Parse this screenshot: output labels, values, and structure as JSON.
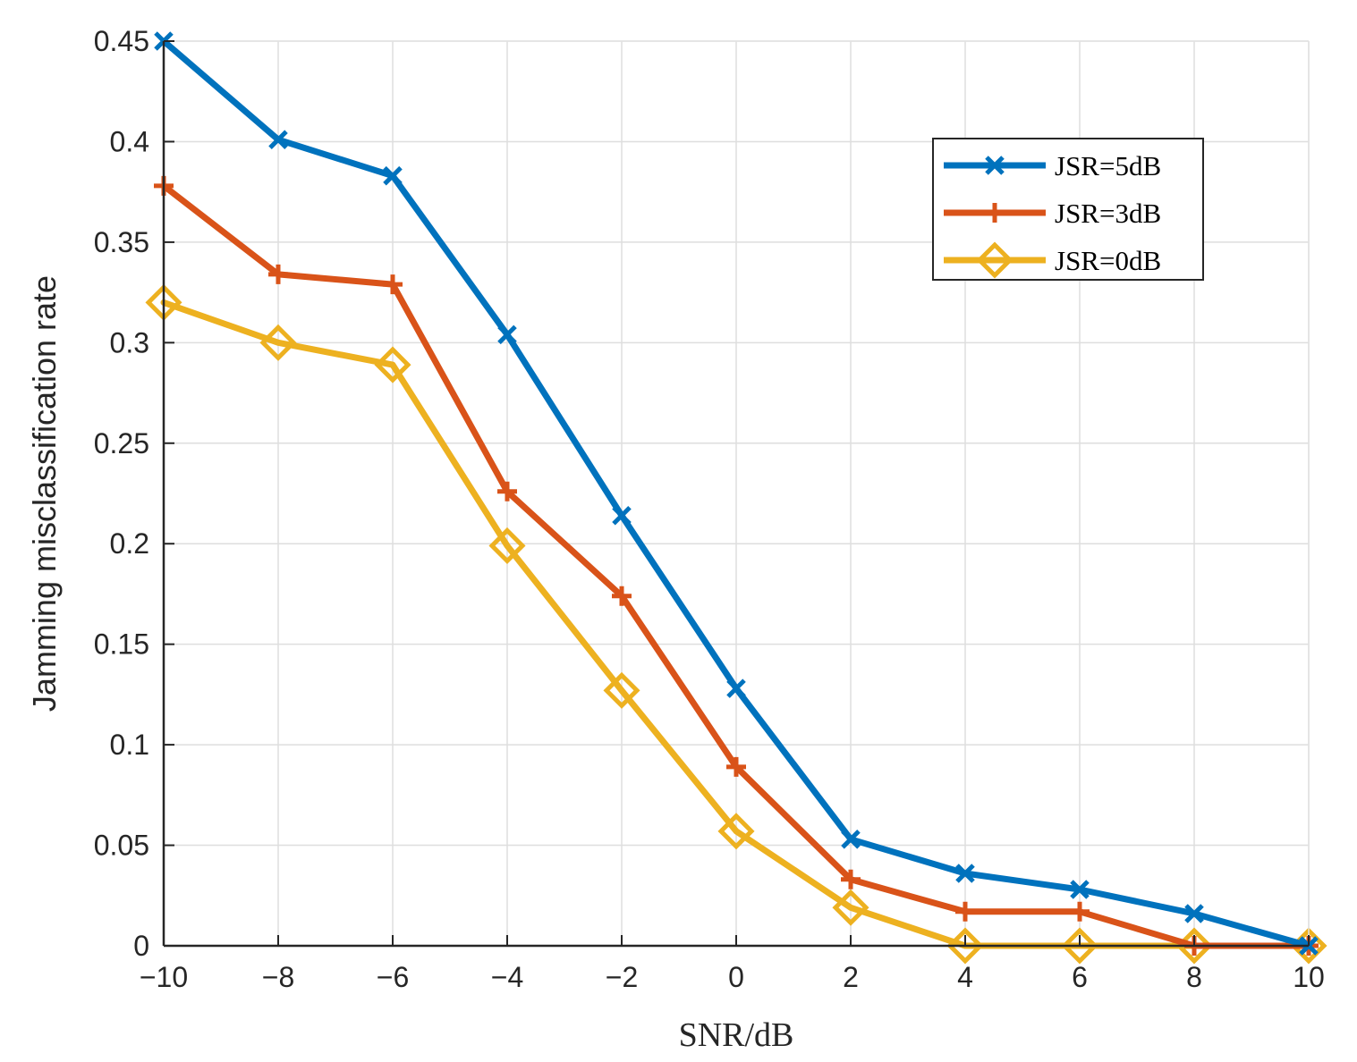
{
  "chart_data": {
    "type": "line",
    "title": "",
    "xlabel": "SNR/dB",
    "ylabel": "Jamming misclassification rate",
    "x": [
      -10,
      -8,
      -6,
      -4,
      -2,
      0,
      2,
      4,
      6,
      8,
      10
    ],
    "xlim": [
      -10,
      10
    ],
    "ylim": [
      0,
      0.45
    ],
    "x_ticks": [
      -10,
      -8,
      -6,
      -4,
      -2,
      0,
      2,
      4,
      6,
      8,
      10
    ],
    "x_tick_labels": [
      "−10",
      "−8",
      "−6",
      "−4",
      "−2",
      "0",
      "2",
      "4",
      "6",
      "8",
      "10"
    ],
    "y_ticks": [
      0,
      0.05,
      0.1,
      0.15,
      0.2,
      0.25,
      0.3,
      0.35,
      0.4,
      0.45
    ],
    "y_tick_labels": [
      "0",
      "0.05",
      "0.1",
      "0.15",
      "0.2",
      "0.25",
      "0.3",
      "0.35",
      "0.4",
      "0.45"
    ],
    "grid": true,
    "legend_position": "top-right",
    "series": [
      {
        "name": "JSR=5dB",
        "color": "#0072BD",
        "marker": "x",
        "values": [
          0.45,
          0.401,
          0.383,
          0.304,
          0.214,
          0.128,
          0.053,
          0.036,
          0.028,
          0.016,
          0.0
        ]
      },
      {
        "name": "JSR=3dB",
        "color": "#D95319",
        "marker": "plus",
        "values": [
          0.378,
          0.334,
          0.329,
          0.226,
          0.174,
          0.089,
          0.033,
          0.017,
          0.017,
          0.0,
          0.0
        ]
      },
      {
        "name": "JSR=0dB",
        "color": "#EDB120",
        "marker": "diamond",
        "values": [
          0.32,
          0.3,
          0.289,
          0.199,
          0.127,
          0.057,
          0.019,
          0.0,
          0.0,
          0.0,
          0.0
        ]
      }
    ]
  }
}
